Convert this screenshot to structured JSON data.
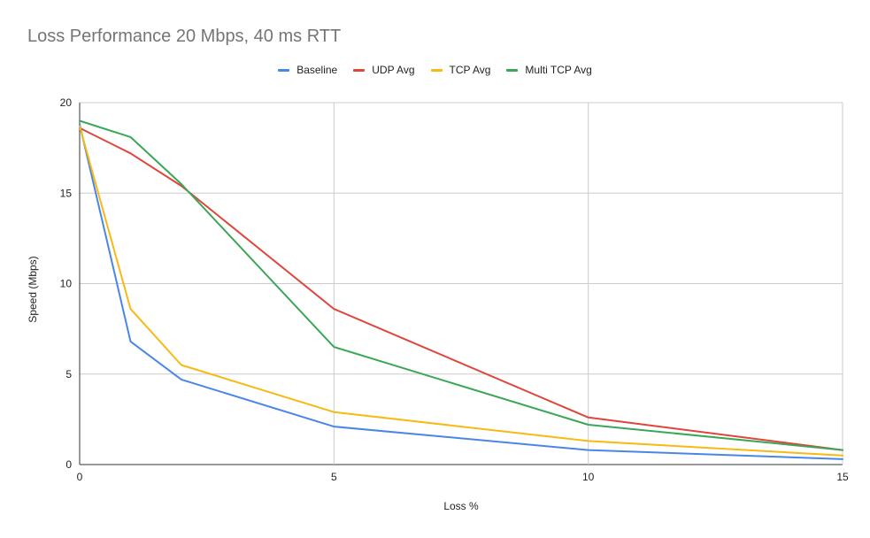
{
  "chart_data": {
    "type": "line",
    "title": "Loss Performance 20 Mbps, 40 ms RTT",
    "xlabel": "Loss %",
    "ylabel": "Speed (Mbps)",
    "x": [
      0,
      1,
      2,
      5,
      10,
      15
    ],
    "xlim": [
      0,
      15
    ],
    "ylim": [
      0,
      20
    ],
    "x_ticks": [
      "0",
      "5",
      "10",
      "15"
    ],
    "y_ticks": [
      "0",
      "5",
      "10",
      "15",
      "20"
    ],
    "grid": true,
    "legend_position": "top",
    "series": [
      {
        "name": "Baseline",
        "color": "#4a86e8",
        "values": [
          18.8,
          6.8,
          4.7,
          2.1,
          0.8,
          0.3
        ]
      },
      {
        "name": "UDP Avg",
        "color": "#e0443b",
        "values": [
          18.6,
          17.2,
          15.4,
          8.6,
          2.6,
          0.8
        ]
      },
      {
        "name": "TCP Avg",
        "color": "#f7b912",
        "values": [
          18.7,
          8.6,
          5.5,
          2.9,
          1.3,
          0.5
        ]
      },
      {
        "name": "Multi TCP Avg",
        "color": "#3aa757",
        "values": [
          19.0,
          18.1,
          15.5,
          6.5,
          2.2,
          0.8
        ]
      }
    ]
  }
}
